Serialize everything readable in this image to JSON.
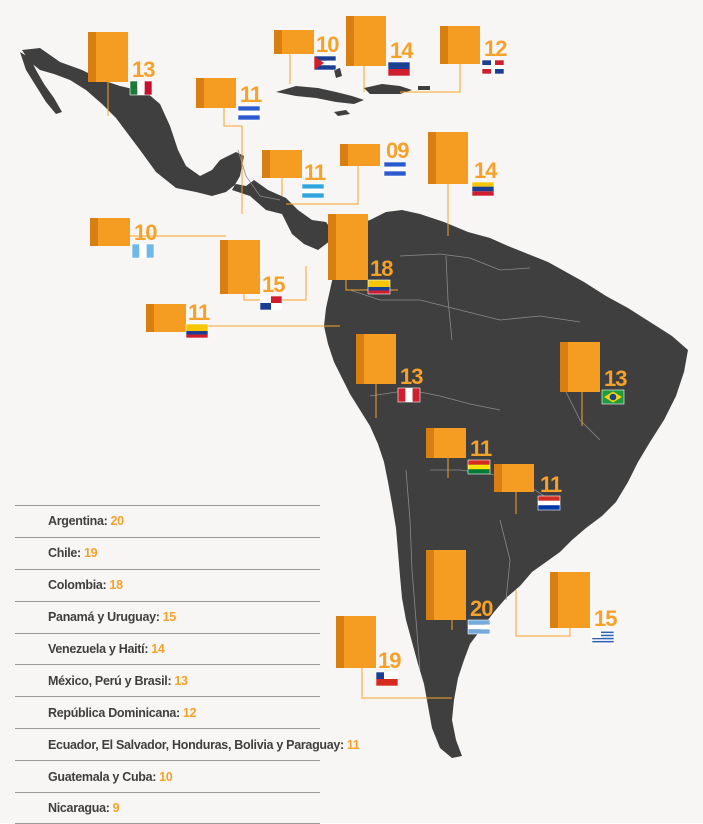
{
  "colors": {
    "background": "#f7f6f4",
    "land": "#3f3f3f",
    "border": "#8a8a8a",
    "bar_front": "#f59d22",
    "bar_side": "#d97f12",
    "leader": "#f5a12a",
    "value_text": "#f5a12a",
    "label_text": "#3f3f3f"
  },
  "chart_data": {
    "type": "bar",
    "categories": [
      "Argentina",
      "Chile",
      "Colombia",
      "Panamá",
      "Uruguay",
      "Venezuela",
      "Haití",
      "México",
      "Perú",
      "Brasil",
      "República Dominicana",
      "Ecuador",
      "El Salvador",
      "Honduras",
      "Bolivia",
      "Paraguay",
      "Guatemala",
      "Cuba",
      "Nicaragua"
    ],
    "values": [
      20,
      19,
      18,
      15,
      15,
      14,
      14,
      13,
      13,
      13,
      12,
      11,
      11,
      11,
      11,
      11,
      10,
      10,
      9
    ],
    "bar_labels": [
      {
        "country": "México",
        "label": "13",
        "flag": "mexico-flag"
      },
      {
        "country": "Cuba",
        "label": "10",
        "flag": "cuba-flag"
      },
      {
        "country": "Haití",
        "label": "14",
        "flag": "haiti-flag"
      },
      {
        "country": "República Dominicana",
        "label": "12",
        "flag": "dominican-republic-flag"
      },
      {
        "country": "El Salvador",
        "label": "11",
        "flag": "el-salvador-flag"
      },
      {
        "country": "Honduras",
        "label": "11",
        "flag": "honduras-flag"
      },
      {
        "country": "Nicaragua",
        "label": "09",
        "flag": "nicaragua-flag"
      },
      {
        "country": "Venezuela",
        "label": "14",
        "flag": "venezuela-flag"
      },
      {
        "country": "Guatemala",
        "label": "10",
        "flag": "guatemala-flag"
      },
      {
        "country": "Colombia",
        "label": "18",
        "flag": "colombia-flag"
      },
      {
        "country": "Panamá",
        "label": "15",
        "flag": "panama-flag"
      },
      {
        "country": "Ecuador",
        "label": "11",
        "flag": "ecuador-flag"
      },
      {
        "country": "Perú",
        "label": "13",
        "flag": "peru-flag"
      },
      {
        "country": "Brasil",
        "label": "13",
        "flag": "brazil-flag"
      },
      {
        "country": "Bolivia",
        "label": "11",
        "flag": "bolivia-flag"
      },
      {
        "country": "Paraguay",
        "label": "11",
        "flag": "paraguay-flag"
      },
      {
        "country": "Argentina",
        "label": "20",
        "flag": "argentina-flag"
      },
      {
        "country": "Uruguay",
        "label": "15",
        "flag": "uruguay-flag"
      },
      {
        "country": "Chile",
        "label": "19",
        "flag": "chile-flag"
      }
    ],
    "title": "",
    "xlabel": "",
    "ylabel": ""
  },
  "legend": [
    {
      "label": "Argentina:",
      "value": "20"
    },
    {
      "label": "Chile:",
      "value": "19"
    },
    {
      "label": "Colombia:",
      "value": "18"
    },
    {
      "label": "Panamá y Uruguay:",
      "value": "15"
    },
    {
      "label": "Venezuela y Haití:",
      "value": "14"
    },
    {
      "label": "México, Perú y Brasil:",
      "value": "13"
    },
    {
      "label": "República Dominicana:",
      "value": "12"
    },
    {
      "label": "Ecuador, El Salvador, Honduras, Bolivia y Paraguay:",
      "value": "11"
    },
    {
      "label": "Guatemala y Cuba:",
      "value": "10"
    },
    {
      "label": "Nicaragua:",
      "value": "9"
    }
  ]
}
